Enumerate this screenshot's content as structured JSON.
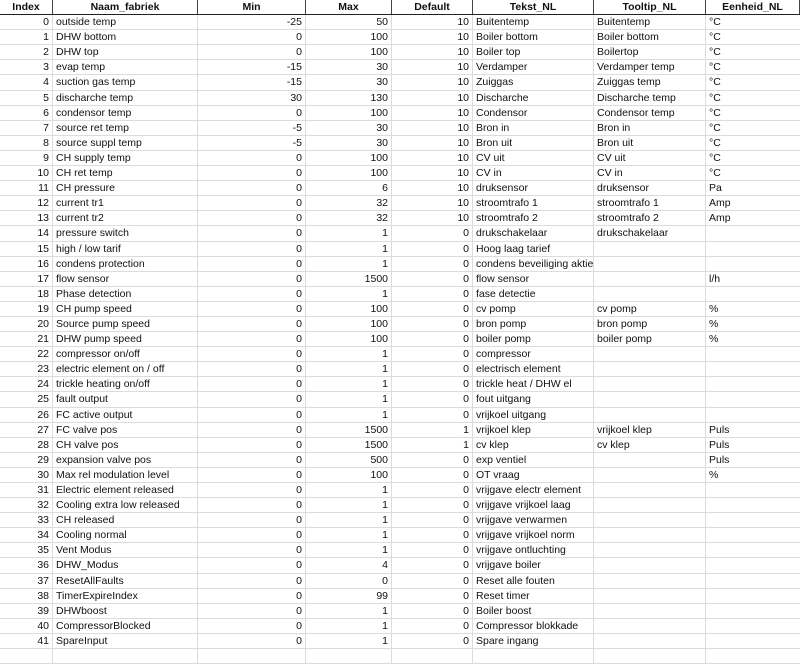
{
  "columns": [
    "Index",
    "Naam_fabriek",
    "Min",
    "Max",
    "Default",
    "Tekst_NL",
    "Tooltip_NL",
    "Eenheid_NL"
  ],
  "rows": [
    [
      "0",
      "outside temp",
      "-25",
      "50",
      "10",
      "Buitentemp",
      "Buitentemp",
      "°C"
    ],
    [
      "1",
      "DHW bottom",
      "0",
      "100",
      "10",
      "Boiler  bottom",
      "Boiler  bottom",
      "°C"
    ],
    [
      "2",
      "DHW top",
      "0",
      "100",
      "10",
      "Boiler top",
      "Boilertop",
      "°C"
    ],
    [
      "3",
      "evap temp",
      "-15",
      "30",
      "10",
      "Verdamper",
      "Verdamper temp",
      "°C"
    ],
    [
      "4",
      "suction gas temp",
      "-15",
      "30",
      "10",
      "Zuiggas",
      "Zuiggas temp",
      "°C"
    ],
    [
      "5",
      "discharche temp",
      "30",
      "130",
      "10",
      "Discharche",
      "Discharche temp",
      "°C"
    ],
    [
      "6",
      "condensor temp",
      "0",
      "100",
      "10",
      "Condensor",
      "Condensor temp",
      "°C"
    ],
    [
      "7",
      "source ret temp",
      "-5",
      "30",
      "10",
      "Bron in",
      "Bron in",
      "°C"
    ],
    [
      "8",
      "source suppl temp",
      "-5",
      "30",
      "10",
      "Bron uit",
      "Bron uit",
      "°C"
    ],
    [
      "9",
      "CH supply temp",
      "0",
      "100",
      "10",
      "CV uit",
      "CV uit",
      "°C"
    ],
    [
      "10",
      "CH ret temp",
      "0",
      "100",
      "10",
      "CV in",
      "CV in",
      "°C"
    ],
    [
      "11",
      "CH pressure",
      "0",
      "6",
      "10",
      "druksensor",
      "druksensor",
      "Pa"
    ],
    [
      "12",
      "current tr1",
      "0",
      "32",
      "10",
      "stroomtrafo 1",
      "stroomtrafo 1",
      "Amp"
    ],
    [
      "13",
      "current tr2",
      "0",
      "32",
      "10",
      "stroomtrafo 2",
      "stroomtrafo 2",
      "Amp"
    ],
    [
      "14",
      "pressure switch",
      "0",
      "1",
      "0",
      "drukschakelaar",
      "drukschakelaar",
      ""
    ],
    [
      "15",
      "high / low tarif",
      "0",
      "1",
      "0",
      "Hoog laag tarief",
      "",
      ""
    ],
    [
      "16",
      "condens protection",
      "0",
      "1",
      "0",
      "condens beveiliging aktief",
      "",
      ""
    ],
    [
      "17",
      "flow sensor",
      "0",
      "1500",
      "0",
      "flow sensor",
      "",
      "l/h"
    ],
    [
      "18",
      "Phase detection",
      "0",
      "1",
      "0",
      "fase detectie",
      "",
      ""
    ],
    [
      "19",
      "CH pump speed",
      "0",
      "100",
      "0",
      "cv pomp",
      "cv pomp",
      "%"
    ],
    [
      "20",
      "Source pump speed",
      "0",
      "100",
      "0",
      "bron pomp",
      "bron pomp",
      "%"
    ],
    [
      "21",
      "DHW pump speed",
      "0",
      "100",
      "0",
      "boiler pomp",
      "boiler pomp",
      "%"
    ],
    [
      "22",
      "compressor on/off",
      "0",
      "1",
      "0",
      "compressor",
      "",
      ""
    ],
    [
      "23",
      "electric element on / off",
      "0",
      "1",
      "0",
      "electrisch element",
      "",
      ""
    ],
    [
      "24",
      "trickle heating on/off",
      "0",
      "1",
      "0",
      "trickle heat / DHW el",
      "",
      ""
    ],
    [
      "25",
      "fault output",
      "0",
      "1",
      "0",
      "fout uitgang",
      "",
      ""
    ],
    [
      "26",
      "FC active output",
      "0",
      "1",
      "0",
      "vrijkoel uitgang",
      "",
      ""
    ],
    [
      "27",
      "FC valve pos",
      "0",
      "1500",
      "1",
      "vrijkoel klep",
      "vrijkoel klep",
      "Puls"
    ],
    [
      "28",
      "CH valve pos",
      "0",
      "1500",
      "1",
      "cv klep",
      "cv klep",
      "Puls"
    ],
    [
      "29",
      "expansion valve pos",
      "0",
      "500",
      "0",
      "exp ventiel",
      "",
      "Puls"
    ],
    [
      "30",
      "Max rel modulation level",
      "0",
      "100",
      "0",
      "OT vraag",
      "",
      "%"
    ],
    [
      "31",
      "Electric element released",
      "0",
      "1",
      "0",
      "vrijgave electr element",
      "",
      ""
    ],
    [
      "32",
      "Cooling extra low released",
      "0",
      "1",
      "0",
      "vrijgave vrijkoel laag",
      "",
      ""
    ],
    [
      "33",
      "CH released",
      "0",
      "1",
      "0",
      "vrijgave verwarmen",
      "",
      ""
    ],
    [
      "34",
      "Cooling normal",
      "0",
      "1",
      "0",
      "vrijgave vrijkoel norm",
      "",
      ""
    ],
    [
      "35",
      "Vent Modus",
      "0",
      "1",
      "0",
      " vrijgave ontluchting",
      "",
      ""
    ],
    [
      "36",
      "DHW_Modus",
      "0",
      "4",
      "0",
      "vrijgave boiler",
      "",
      ""
    ],
    [
      "37",
      "ResetAllFaults",
      "0",
      "0",
      "0",
      "Reset alle fouten",
      "",
      ""
    ],
    [
      "38",
      "TimerExpireIndex",
      "0",
      "99",
      "0",
      "Reset timer",
      "",
      ""
    ],
    [
      "39",
      "DHWboost",
      "0",
      "1",
      "0",
      "Boiler boost",
      "",
      ""
    ],
    [
      "40",
      "CompressorBlocked",
      "0",
      "1",
      "0",
      "Compressor blokkade",
      "",
      ""
    ],
    [
      "41",
      "SpareInput",
      "0",
      "1",
      "0",
      "Spare ingang",
      "",
      ""
    ]
  ]
}
